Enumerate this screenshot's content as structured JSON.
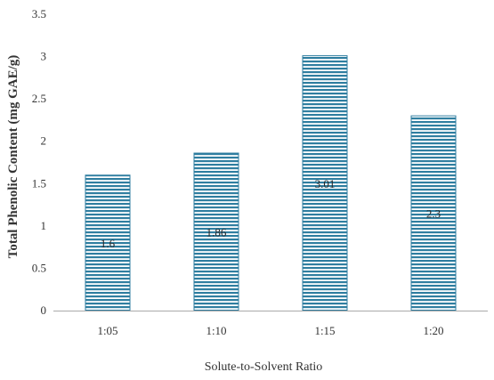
{
  "chart_data": {
    "type": "bar",
    "categories": [
      "1:05",
      "1:10",
      "1:15",
      "1:20"
    ],
    "values": [
      1.6,
      1.86,
      3.01,
      2.3
    ],
    "data_labels": [
      "1.6",
      "1.86",
      "3.01",
      "2.3"
    ],
    "title": "",
    "xlabel": "Solute-to-Solvent Ratio",
    "ylabel": "Total Phenolic Content (mg GAE/g)",
    "ylim": [
      0,
      3.5
    ],
    "yticks": [
      0,
      0.5,
      1,
      1.5,
      2,
      2.5,
      3,
      3.5
    ],
    "ytick_labels": [
      "0",
      "0.5",
      "1",
      "1.5",
      "2",
      "2.5",
      "3",
      "3.5"
    ],
    "grid": false,
    "legend": "none",
    "bar_color": "#2f7ea0",
    "bar_stripe_color": "#ffffff",
    "axis_color": "#aaaaaa"
  }
}
